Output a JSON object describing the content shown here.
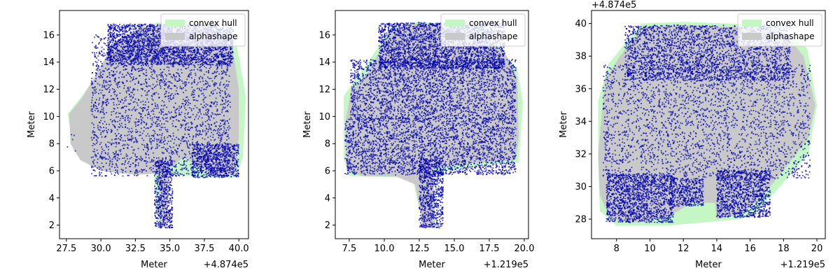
{
  "chart_data": [
    {
      "type": "scatter",
      "xlabel": "Meter",
      "ylabel": "Meter",
      "x_offset_label": "+4.874e5",
      "y_offset_label": "",
      "xlim": [
        27.0,
        40.7
      ],
      "ylim": [
        1.0,
        17.8
      ],
      "xticks": [
        27.5,
        30.0,
        32.5,
        35.0,
        37.5,
        40.0
      ],
      "xtick_labels": [
        "27.5",
        "30.0",
        "32.5",
        "35.0",
        "37.5",
        "40.0"
      ],
      "yticks": [
        2,
        4,
        6,
        8,
        10,
        12,
        14,
        16
      ],
      "ytick_labels": [
        "2",
        "4",
        "6",
        "8",
        "10",
        "12",
        "14",
        "16"
      ],
      "legend": {
        "placement": "top-right",
        "entries": [
          "convex hull",
          "alphashape"
        ]
      },
      "series": [
        {
          "name": "convex hull",
          "kind": "polygon",
          "points": [
            [
              27.6,
              10.2
            ],
            [
              28.7,
              11.6
            ],
            [
              31.5,
              15.6
            ],
            [
              34.0,
              16.9
            ],
            [
              36.0,
              17.0
            ],
            [
              38.5,
              16.8
            ],
            [
              39.8,
              15.5
            ],
            [
              40.5,
              11.5
            ],
            [
              40.3,
              7.0
            ],
            [
              39.8,
              5.5
            ],
            [
              37.5,
              5.5
            ],
            [
              34.5,
              5.8
            ],
            [
              34.8,
              1.9
            ],
            [
              34.2,
              1.8
            ],
            [
              33.8,
              5.8
            ],
            [
              30.5,
              6.0
            ],
            [
              28.0,
              7.5
            ]
          ]
        },
        {
          "name": "alphashape",
          "kind": "polygon",
          "points": [
            [
              27.7,
              10.2
            ],
            [
              28.6,
              11.3
            ],
            [
              29.6,
              13.0
            ],
            [
              31.0,
              15.5
            ],
            [
              33.0,
              16.6
            ],
            [
              35.5,
              16.8
            ],
            [
              37.8,
              16.7
            ],
            [
              39.5,
              15.3
            ],
            [
              40.0,
              12.0
            ],
            [
              40.0,
              8.5
            ],
            [
              39.8,
              5.8
            ],
            [
              38.2,
              5.6
            ],
            [
              37.2,
              6.2
            ],
            [
              36.0,
              7.0
            ],
            [
              35.0,
              6.2
            ],
            [
              34.8,
              1.9
            ],
            [
              34.3,
              1.8
            ],
            [
              34.2,
              5.8
            ],
            [
              32.5,
              5.7
            ],
            [
              30.0,
              6.0
            ],
            [
              28.5,
              6.8
            ],
            [
              27.8,
              8.0
            ]
          ]
        },
        {
          "name": "points",
          "kind": "points",
          "color": "#0000b0",
          "regions": [
            [
              28.3,
              11.3,
              6.3,
              9.9
            ],
            [
              29.3,
              39.4,
              5.6,
              16.0
            ],
            [
              30.5,
              39.6,
              13.8,
              16.8
            ],
            [
              33.9,
              35.2,
              1.8,
              6.8
            ],
            [
              36.6,
              40.0,
              5.5,
              8.0
            ]
          ]
        }
      ]
    },
    {
      "type": "scatter",
      "xlabel": "Meter",
      "ylabel": "Meter",
      "x_offset_label": "+1.219e5",
      "y_offset_label": "",
      "xlim": [
        6.5,
        20.3
      ],
      "ylim": [
        1.0,
        17.8
      ],
      "xticks": [
        7.5,
        10.0,
        12.5,
        15.0,
        17.5,
        20.0
      ],
      "xtick_labels": [
        "7.5",
        "10.0",
        "12.5",
        "15.0",
        "17.5",
        "20.0"
      ],
      "yticks": [
        2,
        4,
        6,
        8,
        10,
        12,
        14,
        16
      ],
      "ytick_labels": [
        "2",
        "4",
        "6",
        "8",
        "10",
        "12",
        "14",
        "16"
      ],
      "legend": {
        "placement": "top-right",
        "entries": [
          "convex hull",
          "alphashape"
        ]
      },
      "series": [
        {
          "name": "convex hull",
          "kind": "polygon",
          "points": [
            [
              7.1,
              11.5
            ],
            [
              8.5,
              13.5
            ],
            [
              10.5,
              16.5
            ],
            [
              12.5,
              17.0
            ],
            [
              17.0,
              16.5
            ],
            [
              19.5,
              13.5
            ],
            [
              19.9,
              11.0
            ],
            [
              19.6,
              6.6
            ],
            [
              17.0,
              6.4
            ],
            [
              13.5,
              5.8
            ],
            [
              13.7,
              1.8
            ],
            [
              12.8,
              1.8
            ],
            [
              12.0,
              5.5
            ],
            [
              7.5,
              5.6
            ],
            [
              7.1,
              7.0
            ]
          ]
        },
        {
          "name": "alphashape",
          "kind": "polygon",
          "points": [
            [
              7.2,
              9.5
            ],
            [
              7.6,
              11.8
            ],
            [
              8.8,
              13.2
            ],
            [
              10.4,
              16.2
            ],
            [
              11.4,
              16.8
            ],
            [
              13.5,
              16.8
            ],
            [
              16.5,
              16.3
            ],
            [
              18.7,
              14.5
            ],
            [
              19.5,
              12.8
            ],
            [
              19.6,
              8.5
            ],
            [
              19.4,
              6.8
            ],
            [
              17.0,
              6.6
            ],
            [
              15.5,
              6.5
            ],
            [
              13.5,
              6.2
            ],
            [
              13.6,
              1.8
            ],
            [
              12.8,
              1.8
            ],
            [
              12.2,
              5.0
            ],
            [
              10.8,
              5.6
            ],
            [
              8.5,
              5.6
            ],
            [
              7.3,
              6.0
            ]
          ]
        },
        {
          "name": "points",
          "kind": "points",
          "color": "#0000b0",
          "regions": [
            [
              7.2,
              19.4,
              5.7,
              9.9
            ],
            [
              7.6,
              19.4,
              9.8,
              14.2
            ],
            [
              9.6,
              18.6,
              13.5,
              16.9
            ],
            [
              12.5,
              14.2,
              1.8,
              6.8
            ]
          ]
        }
      ]
    },
    {
      "type": "scatter",
      "xlabel": "Meter",
      "ylabel": "Meter",
      "x_offset_label": "+1.219e5",
      "y_offset_label": "+4.874e5",
      "xlim": [
        6.5,
        20.5
      ],
      "ylim": [
        26.8,
        40.8
      ],
      "xticks": [
        8,
        10,
        12,
        14,
        16,
        18,
        20
      ],
      "xtick_labels": [
        "8",
        "10",
        "12",
        "14",
        "16",
        "18",
        "20"
      ],
      "yticks": [
        28,
        30,
        32,
        34,
        36,
        38,
        40
      ],
      "ytick_labels": [
        "28",
        "30",
        "32",
        "34",
        "36",
        "38",
        "40"
      ],
      "legend": {
        "placement": "top-right",
        "entries": [
          "convex hull",
          "alphashape"
        ]
      },
      "series": [
        {
          "name": "convex hull",
          "kind": "polygon",
          "points": [
            [
              6.9,
              35.2
            ],
            [
              7.5,
              37.5
            ],
            [
              9.5,
              40.0
            ],
            [
              12.0,
              40.1
            ],
            [
              17.5,
              39.9
            ],
            [
              19.4,
              38.5
            ],
            [
              20.0,
              35.0
            ],
            [
              19.5,
              32.0
            ],
            [
              16.5,
              28.5
            ],
            [
              15.5,
              28.0
            ],
            [
              11.0,
              27.6
            ],
            [
              8.0,
              27.6
            ],
            [
              7.0,
              28.5
            ],
            [
              6.9,
              31.5
            ]
          ]
        },
        {
          "name": "alphashape",
          "kind": "polygon",
          "points": [
            [
              6.9,
              32.0
            ],
            [
              7.3,
              36.5
            ],
            [
              8.2,
              38.0
            ],
            [
              9.6,
              39.8
            ],
            [
              12.2,
              39.9
            ],
            [
              17.8,
              39.7
            ],
            [
              19.2,
              38.0
            ],
            [
              19.9,
              35.0
            ],
            [
              19.5,
              33.0
            ],
            [
              18.0,
              31.0
            ],
            [
              16.8,
              29.5
            ],
            [
              15.5,
              28.3
            ],
            [
              14.0,
              28.0
            ],
            [
              13.9,
              29.0
            ],
            [
              12.5,
              29.0
            ],
            [
              11.2,
              28.2
            ],
            [
              9.2,
              27.8
            ],
            [
              7.6,
              28.0
            ],
            [
              7.0,
              29.5
            ]
          ]
        },
        {
          "name": "points",
          "kind": "points",
          "color": "#0000b0",
          "regions": [
            [
              7.2,
              19.6,
              30.5,
              37.5
            ],
            [
              8.5,
              18.4,
              36.5,
              39.9
            ],
            [
              7.4,
              11.4,
              27.8,
              30.8
            ],
            [
              11.2,
              13.2,
              28.8,
              30.5
            ],
            [
              14.0,
              17.2,
              28.1,
              31.0
            ]
          ]
        }
      ]
    }
  ]
}
